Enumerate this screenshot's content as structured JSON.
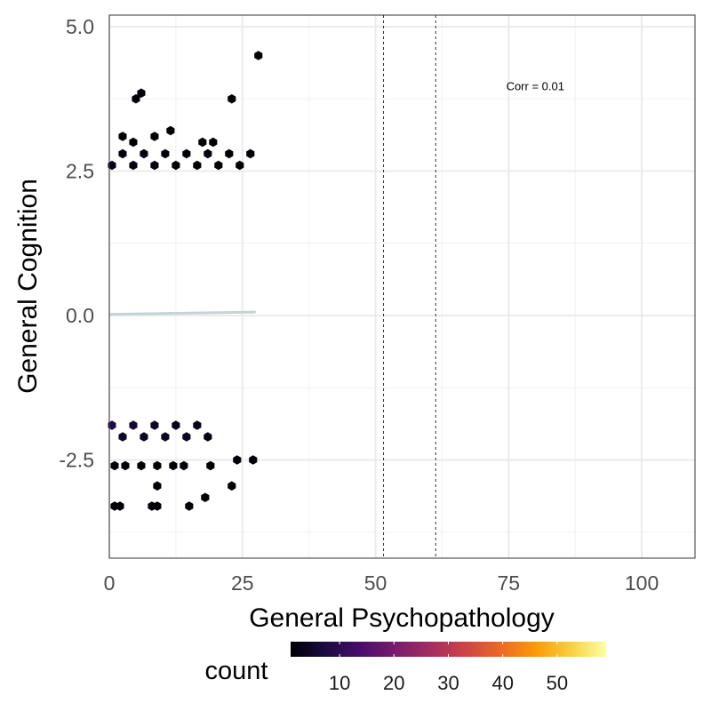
{
  "chart_data": {
    "type": "hexbin",
    "xlabel": "General Psychopathology",
    "ylabel": "General Cognition",
    "xlim": [
      0,
      110
    ],
    "ylim": [
      -4.2,
      5.2
    ],
    "x_ticks": [
      0,
      25,
      50,
      75,
      100
    ],
    "x_tick_labels": [
      "0",
      "25",
      "50",
      "75",
      "100"
    ],
    "y_ticks": [
      -2.5,
      0.0,
      2.5,
      5.0
    ],
    "y_tick_labels": [
      "-2.5",
      "0.0",
      "2.5",
      "5.0"
    ],
    "grid": true,
    "annotation": "Corr = 0.01",
    "annotation_pos": [
      80,
      3.9
    ],
    "vlines": [
      51.5,
      61.3
    ],
    "fit_line": {
      "x": [
        0,
        27.5
      ],
      "y": [
        0.02,
        0.06
      ],
      "color": "#c8d2d2"
    },
    "legend": {
      "title": "count",
      "position": "bottom",
      "range": [
        1,
        59
      ],
      "ticks": [
        10,
        20,
        30,
        40,
        50
      ],
      "tick_labels": [
        "10",
        "20",
        "30",
        "40",
        "50"
      ],
      "colormap": [
        "#000004",
        "#1b0c41",
        "#4a0c6b",
        "#781c6d",
        "#a52c60",
        "#cf4446",
        "#ed6925",
        "#fb9b06",
        "#f7d13d",
        "#fcffa4"
      ]
    },
    "series": [
      {
        "name": "count",
        "points": [
          [
            0.5,
            -1.9,
            8
          ],
          [
            2.5,
            -2.1,
            5
          ],
          [
            4.5,
            -1.9,
            6
          ],
          [
            6.5,
            -2.1,
            4
          ],
          [
            8.5,
            -1.9,
            5
          ],
          [
            10.5,
            -2.1,
            4
          ],
          [
            12.5,
            -1.9,
            3
          ],
          [
            14.5,
            -2.1,
            4
          ],
          [
            16.5,
            -1.9,
            3
          ],
          [
            18.5,
            -2.1,
            2
          ],
          [
            1,
            -2.6,
            2
          ],
          [
            3,
            -2.6,
            1
          ],
          [
            6,
            -2.6,
            1
          ],
          [
            9,
            -2.6,
            1
          ],
          [
            12,
            -2.6,
            1
          ],
          [
            14,
            -2.6,
            1
          ],
          [
            19,
            -2.6,
            1
          ],
          [
            24,
            -2.5,
            1
          ],
          [
            27,
            -2.5,
            1
          ],
          [
            1,
            -3.3,
            1
          ],
          [
            2,
            -3.3,
            1
          ],
          [
            8,
            -3.3,
            1
          ],
          [
            9,
            -3.3,
            1
          ],
          [
            15,
            -3.3,
            1
          ],
          [
            9,
            -2.95,
            1
          ],
          [
            18,
            -3.15,
            1
          ],
          [
            23,
            -2.95,
            1
          ],
          [
            0.5,
            2.6,
            3
          ],
          [
            2.5,
            2.8,
            2
          ],
          [
            4.5,
            2.6,
            2
          ],
          [
            6.5,
            2.8,
            2
          ],
          [
            8.5,
            2.6,
            2
          ],
          [
            10.5,
            2.8,
            2
          ],
          [
            12.5,
            2.6,
            1
          ],
          [
            14.5,
            2.8,
            1
          ],
          [
            16.5,
            2.6,
            1
          ],
          [
            18.5,
            2.8,
            2
          ],
          [
            20.5,
            2.6,
            1
          ],
          [
            22.5,
            2.8,
            1
          ],
          [
            24.5,
            2.6,
            1
          ],
          [
            26.5,
            2.8,
            1
          ],
          [
            2.5,
            3.1,
            1
          ],
          [
            4.5,
            3.0,
            1
          ],
          [
            8.5,
            3.1,
            1
          ],
          [
            11.5,
            3.2,
            1
          ],
          [
            17.5,
            3.0,
            1
          ],
          [
            19.5,
            3.0,
            1
          ],
          [
            5,
            3.75,
            1
          ],
          [
            6,
            3.85,
            1
          ],
          [
            23,
            3.75,
            1
          ],
          [
            28,
            4.5,
            1
          ]
        ]
      }
    ]
  }
}
